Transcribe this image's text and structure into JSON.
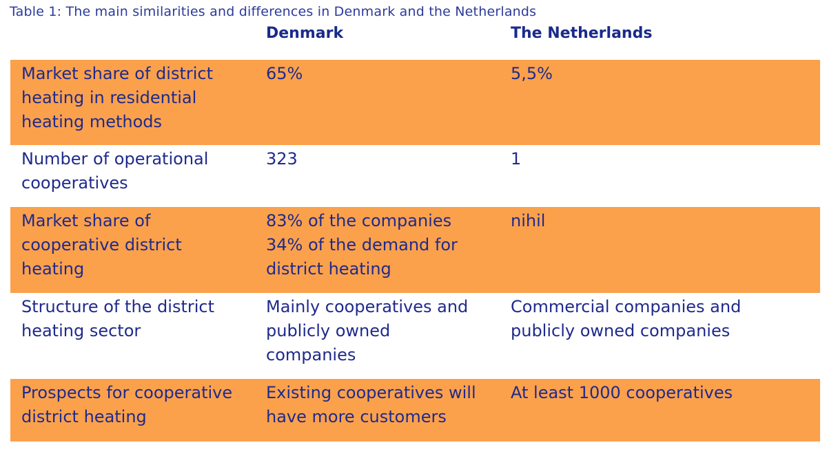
{
  "caption": "Table 1: The main similarities and differences in Denmark and the Netherlands",
  "headers": [
    "",
    "Denmark",
    "The Netherlands"
  ],
  "rows": [
    {
      "label": "Market share of district\nheating in residential\nheating methods",
      "denmark": "65%",
      "netherlands": "5,5%"
    },
    {
      "label": "Number of operational\ncooperatives",
      "denmark": "323",
      "netherlands": "1"
    },
    {
      "label": "Market share of\ncooperative district\nheating",
      "denmark": "83% of the companies\n34% of the demand for\ndistrict heating",
      "netherlands": "nihil"
    },
    {
      "label": "Structure of the district\nheating sector",
      "denmark": "Mainly cooperatives and\npublicly owned\ncompanies",
      "netherlands": "Commercial companies and\npublicly owned companies"
    },
    {
      "label": "Prospects for cooperative\ndistrict heating",
      "denmark": "Existing cooperatives will\nhave more customers",
      "netherlands": "At least 1000 cooperatives"
    }
  ],
  "colors": {
    "shade": "#fba14c",
    "text": "#1f2a8c"
  }
}
